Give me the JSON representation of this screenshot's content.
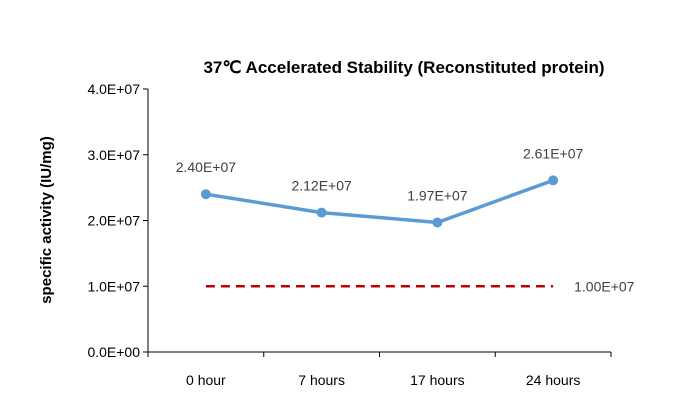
{
  "chart_data": {
    "type": "line",
    "title": "37℃ Accelerated  Stability (Reconstituted protein)",
    "ylabel": "specific activity (IU/mg)",
    "xlabel": "",
    "categories": [
      "0 hour",
      "7 hours",
      "17 hours",
      "24 hours"
    ],
    "series": [
      {
        "values": [
          24000000,
          21200000,
          19700000,
          26100000
        ],
        "data_labels": [
          "2.40E+07",
          "2.12E+07",
          "1.97E+07",
          "2.61E+07"
        ],
        "color": "#5B9BD5",
        "style": "solid-with-markers"
      }
    ],
    "reference_line": {
      "value": 10000000,
      "label": "1.00E+07",
      "color": "#C00000",
      "style": "dashed"
    },
    "ylim": [
      0,
      40000000
    ],
    "yticks": [
      0,
      10000000,
      20000000,
      30000000,
      40000000
    ],
    "ytick_labels": [
      "0.0E+00",
      "1.0E+07",
      "2.0E+07",
      "3.0E+07",
      "4.0E+07"
    ],
    "grid": false,
    "legend": "none"
  }
}
